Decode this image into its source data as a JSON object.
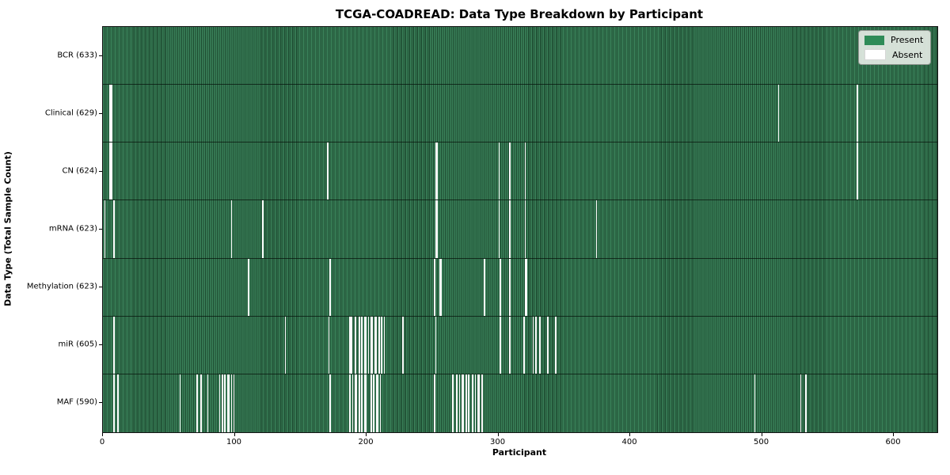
{
  "chart_data": {
    "type": "heatmap",
    "title": "TCGA-COADREAD: Data Type Breakdown by Participant",
    "xlabel": "Participant",
    "ylabel": "Data Type (Total Sample Count)",
    "total_participants": 633,
    "x_ticks": [
      0,
      100,
      200,
      300,
      400,
      500,
      600
    ],
    "grid": false,
    "legend_position": "upper right",
    "colors": {
      "present": "#2e8b57",
      "present_edge": "#1d4a30",
      "absent": "#fbfbfb"
    },
    "legend": [
      {
        "label": "Present",
        "color": "#2e8b57"
      },
      {
        "label": "Absent",
        "color": "#ffffff"
      }
    ],
    "rows": [
      {
        "name": "BCR",
        "label": "BCR (633)",
        "present_count": 633,
        "absent_indices": []
      },
      {
        "name": "Clinical",
        "label": "Clinical (629)",
        "present_count": 629,
        "absent_indices": [
          5,
          6,
          512,
          572
        ]
      },
      {
        "name": "CN",
        "label": "CN (624)",
        "present_count": 624,
        "absent_indices": [
          5,
          6,
          170,
          252,
          253,
          300,
          308,
          320,
          572
        ]
      },
      {
        "name": "mRNA",
        "label": "mRNA (623)",
        "present_count": 623,
        "absent_indices": [
          1,
          8,
          97,
          121,
          252,
          253,
          300,
          308,
          320,
          374
        ]
      },
      {
        "name": "Methylation",
        "label": "Methylation (623)",
        "present_count": 623,
        "absent_indices": [
          110,
          172,
          251,
          255,
          256,
          289,
          301,
          308,
          320,
          321
        ]
      },
      {
        "name": "miR",
        "label": "miR (605)",
        "present_count": 605,
        "absent_indices": [
          8,
          138,
          171,
          187,
          188,
          191,
          194,
          196,
          198,
          199,
          201,
          203,
          204,
          206,
          207,
          209,
          211,
          213,
          227,
          252,
          301,
          308,
          319,
          326,
          328,
          331,
          337,
          343
        ]
      },
      {
        "name": "MAF",
        "label": "MAF (590)",
        "present_count": 590,
        "absent_indices": [
          8,
          11,
          58,
          71,
          74,
          79,
          88,
          90,
          92,
          94,
          95,
          97,
          99,
          172,
          187,
          189,
          191,
          192,
          194,
          196,
          198,
          199,
          203,
          205,
          207,
          208,
          210,
          251,
          265,
          268,
          270,
          272,
          273,
          275,
          277,
          280,
          282,
          284,
          285,
          287,
          494,
          529,
          533
        ]
      }
    ]
  }
}
